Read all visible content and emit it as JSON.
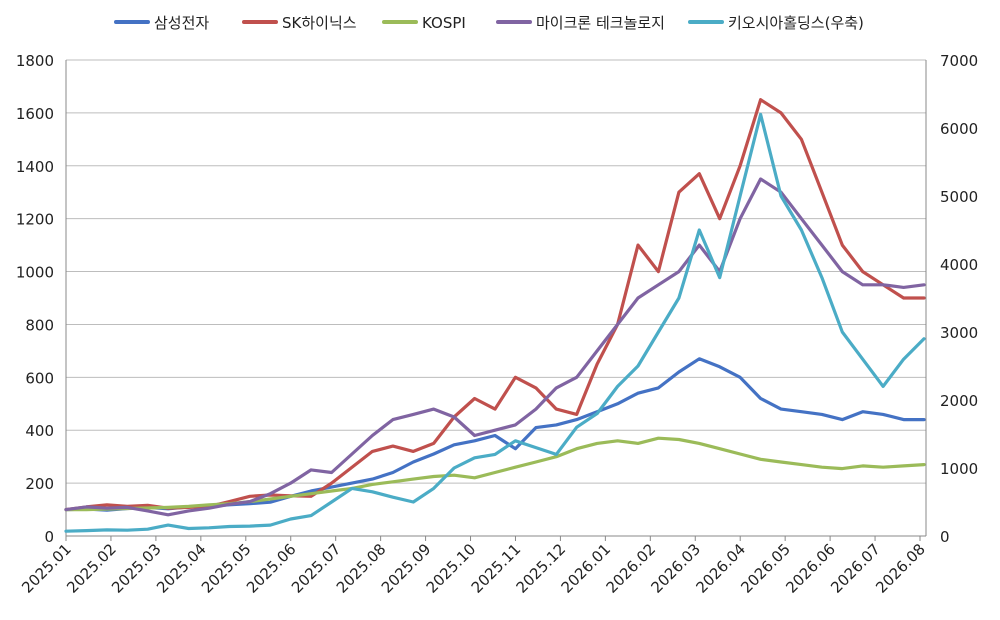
{
  "chart_data": {
    "type": "line",
    "title": "",
    "xlabel": "",
    "ylabel": "",
    "ylim": [
      0,
      1800
    ],
    "y2lim": [
      0,
      7000
    ],
    "yticks": [
      "0",
      "200",
      "400",
      "600",
      "800",
      "1000",
      "1200",
      "1400",
      "1600",
      "1800"
    ],
    "y2ticks": [
      "0",
      "1000",
      "2000",
      "3000",
      "4000",
      "5000",
      "6000",
      "7000"
    ],
    "x_tick_labels": [
      "2025.01",
      "2025.02",
      "2025.03",
      "2025.04",
      "2025.05",
      "2025.06",
      "2025.07",
      "2025.08",
      "2025.09",
      "2025.10",
      "2025.11",
      "2025.12",
      "2026.01",
      "2026.02",
      "2026.03",
      "2026.04",
      "2026.05",
      "2026.06",
      "2026.07",
      "2026.08"
    ],
    "grid": true,
    "legend_position": "top",
    "series": [
      {
        "name": "삼성전자",
        "color": "#4472C4",
        "axis": "left",
        "values": [
          100,
          102,
          98,
          104,
          108,
          103,
          110,
          112,
          118,
          122,
          128,
          150,
          170,
          185,
          200,
          215,
          240,
          280,
          310,
          345,
          360,
          380,
          330,
          410,
          420,
          440,
          470,
          500,
          540,
          560,
          620,
          670,
          640,
          600,
          520,
          480,
          470,
          460,
          440,
          470,
          460,
          440,
          440
        ]
      },
      {
        "name": "SK하이닉스",
        "color": "#C0504D",
        "axis": "left",
        "values": [
          100,
          110,
          118,
          112,
          116,
          105,
          108,
          112,
          130,
          150,
          155,
          152,
          150,
          200,
          260,
          320,
          340,
          320,
          350,
          450,
          520,
          480,
          600,
          560,
          480,
          460,
          650,
          800,
          1100,
          1000,
          1300,
          1370,
          1200,
          1400,
          1650,
          1600,
          1500,
          1300,
          1100,
          1000,
          950,
          900,
          900
        ]
      },
      {
        "name": "KOSPI",
        "color": "#9BBB59",
        "axis": "left",
        "values": [
          100,
          100,
          102,
          104,
          106,
          108,
          112,
          118,
          122,
          130,
          140,
          150,
          160,
          170,
          180,
          195,
          205,
          215,
          225,
          230,
          220,
          240,
          260,
          280,
          300,
          330,
          350,
          360,
          350,
          370,
          365,
          350,
          330,
          310,
          290,
          280,
          270,
          260,
          255,
          265,
          260,
          265,
          270
        ]
      },
      {
        "name": "마이크론 테크놀로지",
        "color": "#8064A2",
        "axis": "left",
        "values": [
          100,
          110,
          105,
          108,
          95,
          80,
          95,
          105,
          120,
          130,
          160,
          200,
          250,
          240,
          310,
          380,
          440,
          460,
          480,
          450,
          380,
          400,
          420,
          480,
          560,
          600,
          700,
          800,
          900,
          950,
          1000,
          1100,
          1000,
          1200,
          1350,
          1300,
          1200,
          1100,
          1000,
          950,
          950,
          940,
          950
        ]
      },
      {
        "name": "키오시아홀딩스(우축)",
        "color": "#4BACC6",
        "axis": "right",
        "values": [
          70,
          80,
          90,
          85,
          100,
          160,
          110,
          120,
          140,
          145,
          160,
          250,
          300,
          500,
          700,
          650,
          570,
          500,
          700,
          1000,
          1150,
          1200,
          1400,
          1300,
          1200,
          1600,
          1800,
          2200,
          2500,
          3000,
          3500,
          4500,
          3800,
          5000,
          6200,
          5000,
          4500,
          3800,
          3000,
          2600,
          2200,
          2600,
          2900
        ]
      }
    ]
  }
}
